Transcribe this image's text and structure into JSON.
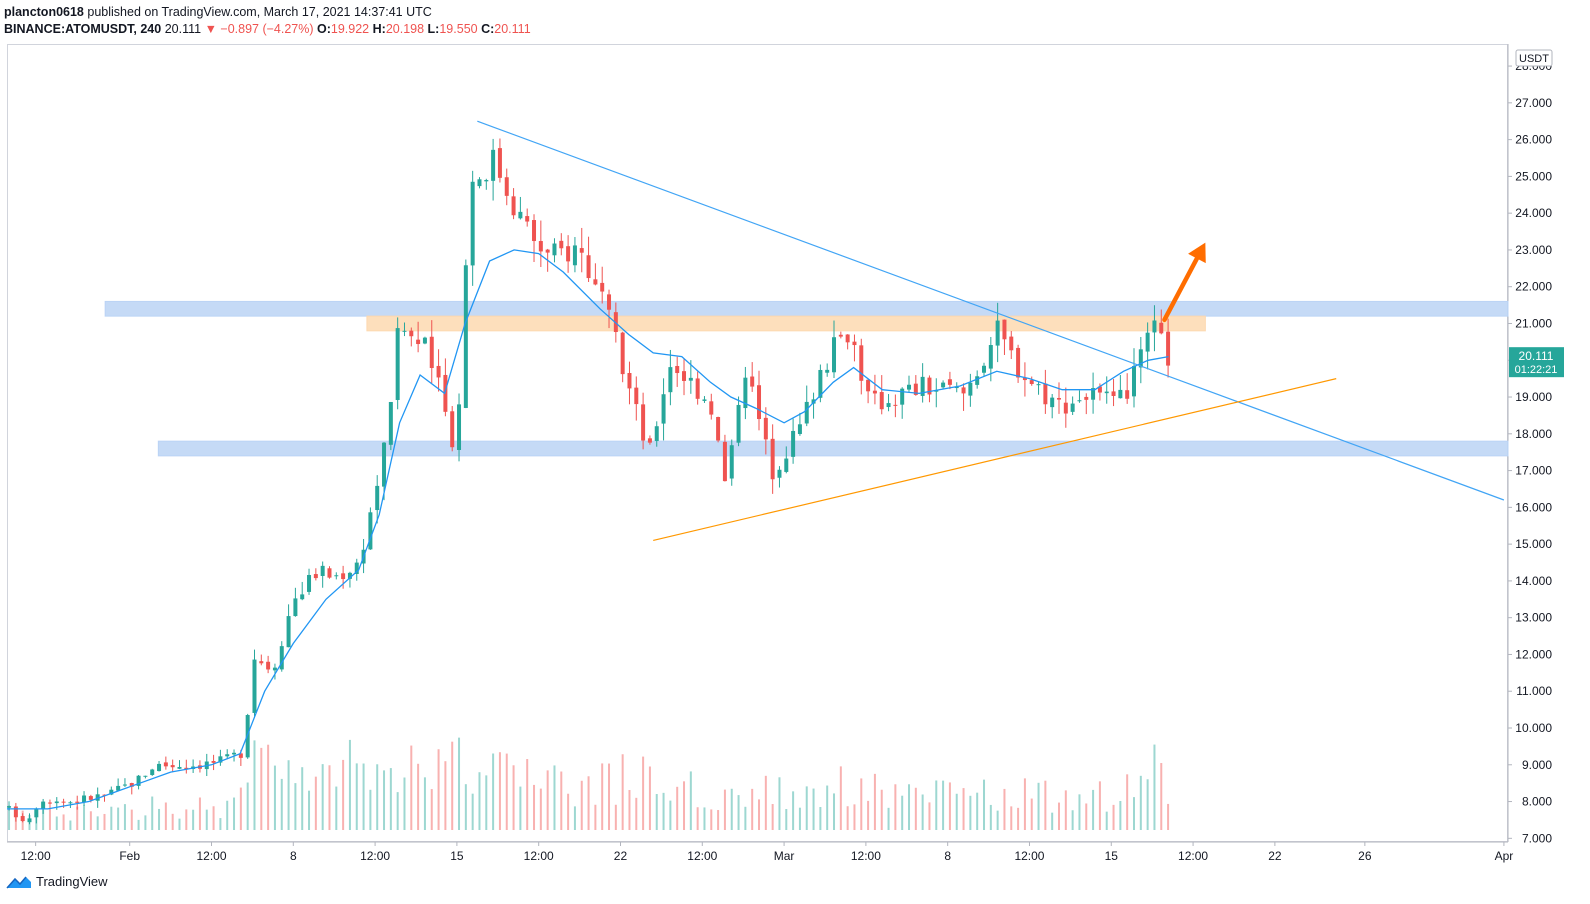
{
  "header": {
    "author": "plancton0618",
    "published_text": "published on TradingView.com, March 17, 2021 14:37:41 UTC",
    "symbol": "BINANCE:ATOMUSDT, 240",
    "last": "20.111",
    "change": "▼ −0.897 (−4.27%)",
    "o_label": "O:",
    "o_value": "19.922",
    "h_label": "H:",
    "h_value": "20.198",
    "l_label": "L:",
    "l_value": "19.550",
    "c_label": "C:",
    "c_value": "20.111"
  },
  "footer": {
    "brand": "TradingView"
  },
  "colors": {
    "up": "#26a69a",
    "down": "#ef5350",
    "ma": "#2196f3",
    "resistance_trend": "#42a5f5",
    "support_trend": "#ff9800",
    "zone_blue": "#bbd3f5",
    "zone_orange": "#fdd9b0",
    "arrow": "#ff6d00",
    "price_badge": "#26a69a"
  },
  "chart_data": {
    "type": "candlestick",
    "symbol": "ATOMUSDT",
    "interval": "240",
    "currency_label": "USDT",
    "y_ticks": [
      "7.000",
      "8.000",
      "9.000",
      "10.000",
      "11.000",
      "12.000",
      "13.000",
      "14.000",
      "15.000",
      "16.000",
      "17.000",
      "18.000",
      "19.000",
      "20.000",
      "21.000",
      "22.000",
      "23.000",
      "24.000",
      "25.000",
      "26.000",
      "27.000",
      "28.000"
    ],
    "ylim": [
      6.9,
      28.6
    ],
    "x_ticks": [
      {
        "label": "12:00",
        "t": 0.7
      },
      {
        "label": "Feb",
        "t": 3.0
      },
      {
        "label": "12:00",
        "t": 5.0
      },
      {
        "label": "8",
        "t": 7.0
      },
      {
        "label": "12:00",
        "t": 9.0
      },
      {
        "label": "15",
        "t": 11.0
      },
      {
        "label": "12:00",
        "t": 13.0
      },
      {
        "label": "22",
        "t": 15.0
      },
      {
        "label": "12:00",
        "t": 17.0
      },
      {
        "label": "Mar",
        "t": 19.0
      },
      {
        "label": "12:00",
        "t": 21.0
      },
      {
        "label": "8",
        "t": 23.0
      },
      {
        "label": "12:00",
        "t": 25.0
      },
      {
        "label": "15",
        "t": 27.0
      },
      {
        "label": "12:00",
        "t": 29.0
      },
      {
        "label": "22",
        "t": 31.0
      },
      {
        "label": "26",
        "t": 33.2
      },
      {
        "label": "Apr",
        "t": 36.6
      }
    ],
    "x_range": [
      0,
      36.7
    ],
    "last_price": "20.111",
    "countdown": "01:22:21",
    "price_path": [
      [
        0,
        7.8
      ],
      [
        0.5,
        7.5
      ],
      [
        0.8,
        8.1
      ],
      [
        1.5,
        8.0
      ],
      [
        2.5,
        8.2
      ],
      [
        3.2,
        8.6
      ],
      [
        3.6,
        9.0
      ],
      [
        4.5,
        9.0
      ],
      [
        5.3,
        9.1
      ],
      [
        5.8,
        9.4
      ],
      [
        6.0,
        12.0
      ],
      [
        6.5,
        11.6
      ],
      [
        7.0,
        13.5
      ],
      [
        7.6,
        14.3
      ],
      [
        8.0,
        14.1
      ],
      [
        8.6,
        14.5
      ],
      [
        9.2,
        17.4
      ],
      [
        9.6,
        21.0
      ],
      [
        10.3,
        20.2
      ],
      [
        11.0,
        17.5
      ],
      [
        11.3,
        24.8
      ],
      [
        11.9,
        25.5
      ],
      [
        12.6,
        23.8
      ],
      [
        13.2,
        22.8
      ],
      [
        14.0,
        23.1
      ],
      [
        14.7,
        21.1
      ],
      [
        15.2,
        19.3
      ],
      [
        15.7,
        17.4
      ],
      [
        16.2,
        20.0
      ],
      [
        17.2,
        18.9
      ],
      [
        17.6,
        16.4
      ],
      [
        18.0,
        20.1
      ],
      [
        18.7,
        17.0
      ],
      [
        19.4,
        18.2
      ],
      [
        19.9,
        19.8
      ],
      [
        20.6,
        20.9
      ],
      [
        21.1,
        18.8
      ],
      [
        22.4,
        19.3
      ],
      [
        23.4,
        19.1
      ],
      [
        24.2,
        20.8
      ],
      [
        24.8,
        19.7
      ],
      [
        25.7,
        18.8
      ],
      [
        26.5,
        19.1
      ],
      [
        27.1,
        18.7
      ],
      [
        27.6,
        19.6
      ],
      [
        28.0,
        20.9
      ],
      [
        28.4,
        20.1
      ]
    ],
    "ma_path": [
      [
        0,
        7.8
      ],
      [
        1,
        7.8
      ],
      [
        2,
        8.0
      ],
      [
        3,
        8.4
      ],
      [
        4,
        8.8
      ],
      [
        5,
        9.0
      ],
      [
        5.7,
        9.3
      ],
      [
        6.3,
        11.0
      ],
      [
        7.0,
        12.3
      ],
      [
        7.8,
        13.5
      ],
      [
        8.6,
        14.3
      ],
      [
        9.1,
        15.8
      ],
      [
        9.6,
        18.3
      ],
      [
        10.1,
        19.6
      ],
      [
        10.7,
        19.1
      ],
      [
        11.2,
        21.0
      ],
      [
        11.8,
        22.7
      ],
      [
        12.4,
        23.0
      ],
      [
        13.0,
        22.9
      ],
      [
        13.6,
        22.4
      ],
      [
        14.5,
        21.4
      ],
      [
        15.2,
        20.7
      ],
      [
        15.8,
        20.2
      ],
      [
        16.5,
        20.1
      ],
      [
        17.2,
        19.4
      ],
      [
        17.7,
        19.0
      ],
      [
        18.3,
        18.7
      ],
      [
        19.0,
        18.3
      ],
      [
        19.5,
        18.6
      ],
      [
        20.2,
        19.4
      ],
      [
        20.7,
        19.8
      ],
      [
        21.4,
        19.2
      ],
      [
        22.3,
        19.1
      ],
      [
        23.3,
        19.3
      ],
      [
        24.2,
        19.7
      ],
      [
        25.0,
        19.5
      ],
      [
        25.8,
        19.2
      ],
      [
        26.6,
        19.2
      ],
      [
        27.3,
        19.7
      ],
      [
        27.9,
        20.0
      ],
      [
        28.4,
        20.1
      ]
    ],
    "volume_path": [
      [
        0,
        0.25
      ],
      [
        2,
        0.2
      ],
      [
        3.5,
        0.28
      ],
      [
        5.5,
        0.3
      ],
      [
        6.2,
        0.85
      ],
      [
        7.5,
        0.6
      ],
      [
        9.5,
        1.0
      ],
      [
        11.0,
        0.75
      ],
      [
        11.6,
        0.95
      ],
      [
        12.5,
        0.6
      ],
      [
        14.8,
        0.55
      ],
      [
        15.5,
        0.75
      ],
      [
        16.5,
        0.5
      ],
      [
        18.5,
        0.45
      ],
      [
        20.5,
        0.55
      ],
      [
        22.5,
        0.4
      ],
      [
        24.5,
        0.45
      ],
      [
        26.5,
        0.35
      ],
      [
        27.4,
        0.6
      ],
      [
        28.0,
        0.75
      ],
      [
        28.4,
        0.4
      ]
    ],
    "trendlines": [
      {
        "name": "descending-resistance",
        "from": [
          11.5,
          26.5
        ],
        "to": [
          36.6,
          16.2
        ],
        "color": "#42a5f5"
      },
      {
        "name": "ascending-support",
        "from": [
          15.8,
          15.1
        ],
        "to": [
          32.5,
          19.5
        ],
        "color": "#ff9800"
      }
    ],
    "zones": [
      {
        "name": "upper-resistance-zone",
        "t_from": 2.4,
        "t_to": 36.7,
        "y_from": 21.2,
        "y_to": 21.6,
        "color": "#bbd3f5"
      },
      {
        "name": "pivot-zone",
        "t_from": 8.8,
        "t_to": 29.3,
        "y_from": 20.8,
        "y_to": 21.2,
        "color": "#fdd9b0"
      },
      {
        "name": "lower-support-zone",
        "t_from": 3.7,
        "t_to": 36.7,
        "y_from": 17.4,
        "y_to": 17.8,
        "color": "#bbd3f5"
      }
    ],
    "breakout_arrow": {
      "from": [
        28.3,
        21.1
      ],
      "to": [
        29.3,
        23.2
      ],
      "color": "#ff6d00"
    }
  }
}
